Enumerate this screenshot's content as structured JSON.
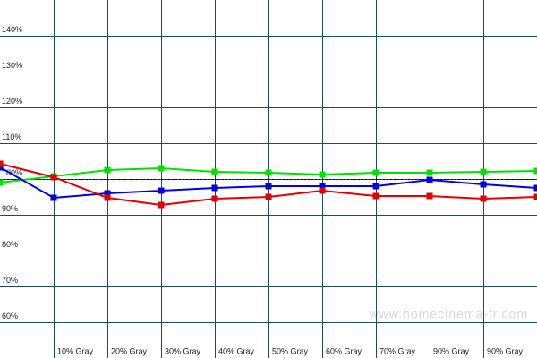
{
  "chart_data": {
    "type": "line",
    "categories": [
      null,
      "10% Gray",
      "20% Gray",
      "30% Gray",
      "40% Gray",
      "50% Gray",
      "60% Gray",
      "70% Gray",
      "90% Gray",
      "90% Gray",
      null
    ],
    "series": [
      {
        "color": "#00e000",
        "values": [
          99,
          100.75,
          102.5,
          103,
          102,
          101.75,
          101.25,
          101.75,
          101.75,
          102,
          102.25
        ]
      },
      {
        "color": "#0000e0",
        "values": [
          103.25,
          94.75,
          96,
          96.75,
          97.5,
          98,
          98,
          98,
          99.75,
          98.5,
          97.5
        ]
      },
      {
        "color": "#e00000",
        "values": [
          104.25,
          100.5,
          94.75,
          92.75,
          94.5,
          95,
          96.75,
          95.25,
          95.25,
          94.5,
          95
        ]
      }
    ],
    "ylim": [
      50,
      150
    ],
    "yticks": [
      {
        "value": 60,
        "label": "60%"
      },
      {
        "value": 70,
        "label": "70%"
      },
      {
        "value": 80,
        "label": "80%"
      },
      {
        "value": 90,
        "label": "90%"
      },
      {
        "value": 100,
        "label": "100%"
      },
      {
        "value": 110,
        "label": "110%"
      },
      {
        "value": 120,
        "label": "120%"
      },
      {
        "value": 130,
        "label": "130%"
      },
      {
        "value": 140,
        "label": "140%"
      }
    ],
    "reference_line": 100,
    "watermark": "www.homecinema-fr.com",
    "grid": true
  }
}
